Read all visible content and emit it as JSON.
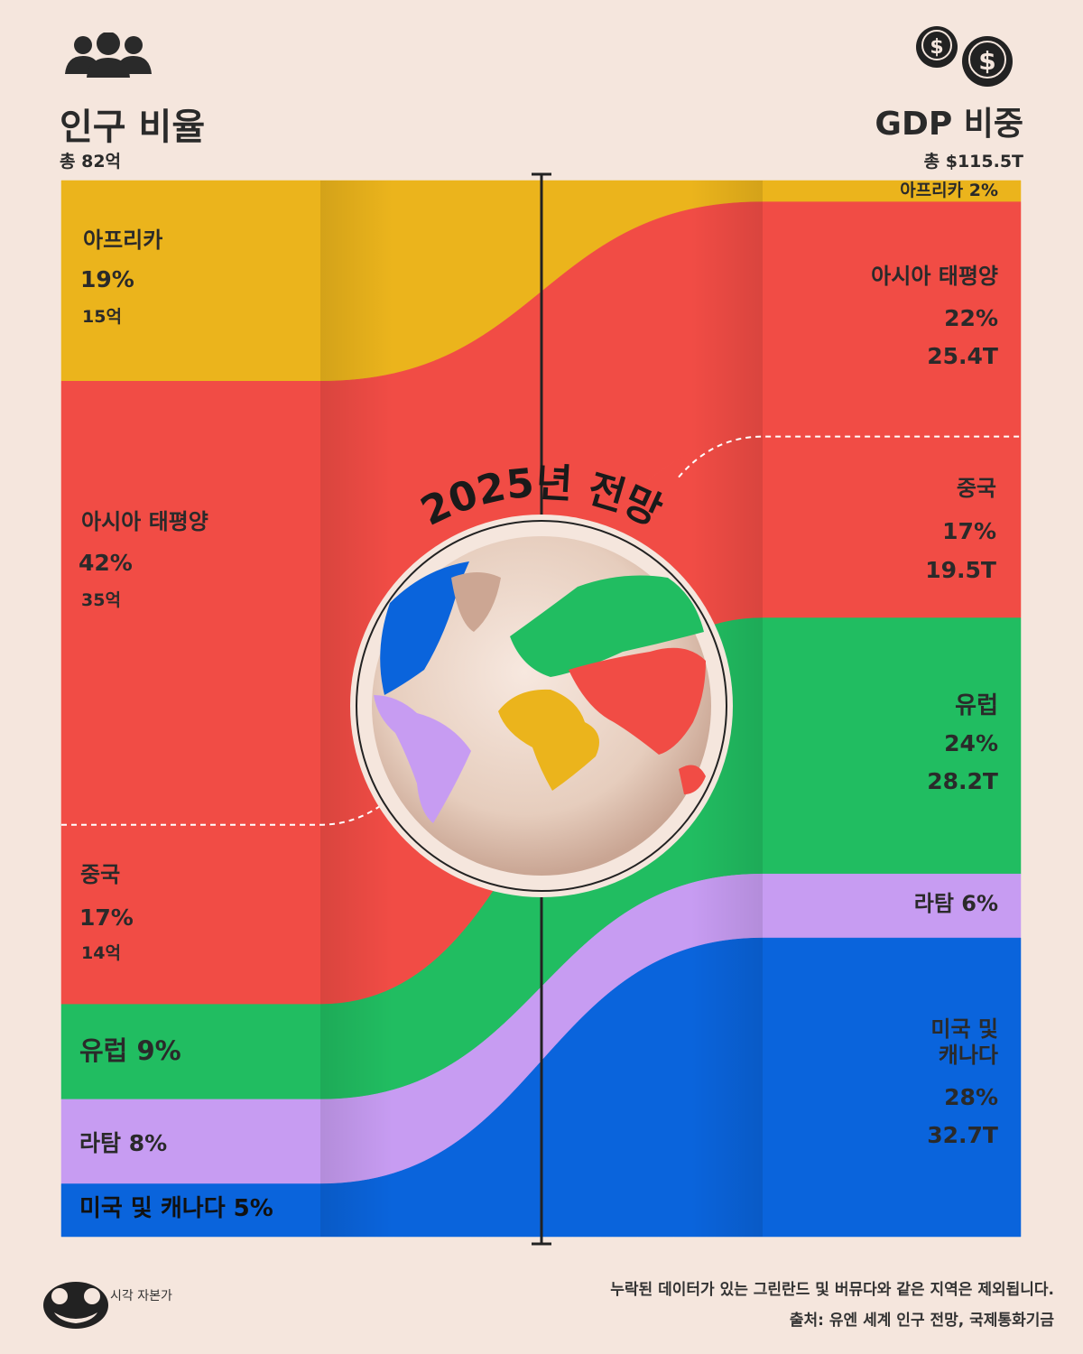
{
  "header": {
    "left_title": "인구 비율",
    "left_total": "총 82억",
    "right_title": "GDP 비중",
    "right_total": "총 $115.5T",
    "people_icon": "people-group-icon",
    "money_icon": "dollar-coins-icon"
  },
  "center_title": "2025년 전망",
  "globe_icon": "world-globe-icon",
  "chart_data": {
    "type": "area",
    "title": "2025년 전망",
    "left_axis": "인구 비율",
    "right_axis": "GDP 비중",
    "categories": [
      "아프리카",
      "아시아 태평양",
      "중국",
      "유럽",
      "라탐",
      "미국 및 캐나다"
    ],
    "population_share_pct": [
      19,
      42,
      17,
      9,
      8,
      5
    ],
    "population_bn_label": [
      "15억",
      "35억",
      "14억",
      null,
      null,
      null
    ],
    "gdp_share_pct": [
      2,
      22,
      17,
      24,
      6,
      28
    ],
    "gdp_trillion_usd": [
      null,
      25.4,
      19.5,
      28.2,
      null,
      32.7
    ],
    "colors": {
      "africa": "#ebb41c",
      "asia_pacific": "#f14c45",
      "europe": "#21bd61",
      "latam": "#c79cf2",
      "us_canada": "#0a64dc"
    }
  },
  "left_labels": {
    "africa": {
      "name": "아프리카",
      "pct": "19%",
      "val": "15억"
    },
    "asia": {
      "name": "아시아 태평양",
      "pct": "42%",
      "val": "35억"
    },
    "china": {
      "name": "중국",
      "pct": "17%",
      "val": "14억"
    },
    "europe": "유럽 9%",
    "latam": "라탐 8%",
    "usca": "미국 및 캐나다 5%"
  },
  "right_labels": {
    "africa": "아프리카 2%",
    "asia": {
      "name": "아시아 태평양",
      "pct": "22%",
      "val": "25.4T"
    },
    "china": {
      "name": "중국",
      "pct": "17%",
      "val": "19.5T"
    },
    "europe": {
      "name": "유럽",
      "pct": "24%",
      "val": "28.2T"
    },
    "latam": "라탐 6%",
    "usca": {
      "name1": "미국 및",
      "name2": "캐나다",
      "pct": "28%",
      "val": "32.7T"
    }
  },
  "footer": {
    "note": "누락된 데이터가 있는 그린란드 및 버뮤다와 같은 지역은 제외됩니다.",
    "source": "출처: 유엔 세계 인구 전망, 국제통화기금",
    "brand": "시각 자본가",
    "brand_icon": "capitalist-logo-icon"
  }
}
